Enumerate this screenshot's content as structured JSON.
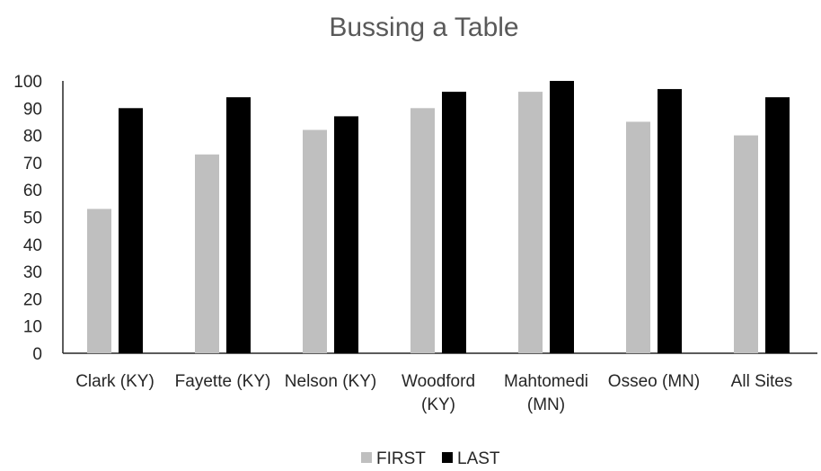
{
  "chart_data": {
    "type": "bar",
    "title": "Bussing a Table",
    "xlabel": "",
    "ylabel": "",
    "ylim": [
      0,
      100
    ],
    "yticks": [
      0,
      10,
      20,
      30,
      40,
      50,
      60,
      70,
      80,
      90,
      100
    ],
    "grid": false,
    "legend_position": "bottom",
    "categories": [
      [
        "Clark (KY)"
      ],
      [
        "Fayette (KY)"
      ],
      [
        "Nelson (KY)"
      ],
      [
        "Woodford",
        "(KY)"
      ],
      [
        "Mahtomedi",
        "(MN)"
      ],
      [
        "Osseo (MN)"
      ],
      [
        "All Sites"
      ]
    ],
    "series": [
      {
        "name": "FIRST",
        "color": "#bfbfbf",
        "values": [
          53,
          73,
          82,
          90,
          96,
          85,
          80
        ]
      },
      {
        "name": "LAST",
        "color": "#000000",
        "values": [
          90,
          94,
          87,
          96,
          100,
          97,
          94
        ]
      }
    ]
  }
}
